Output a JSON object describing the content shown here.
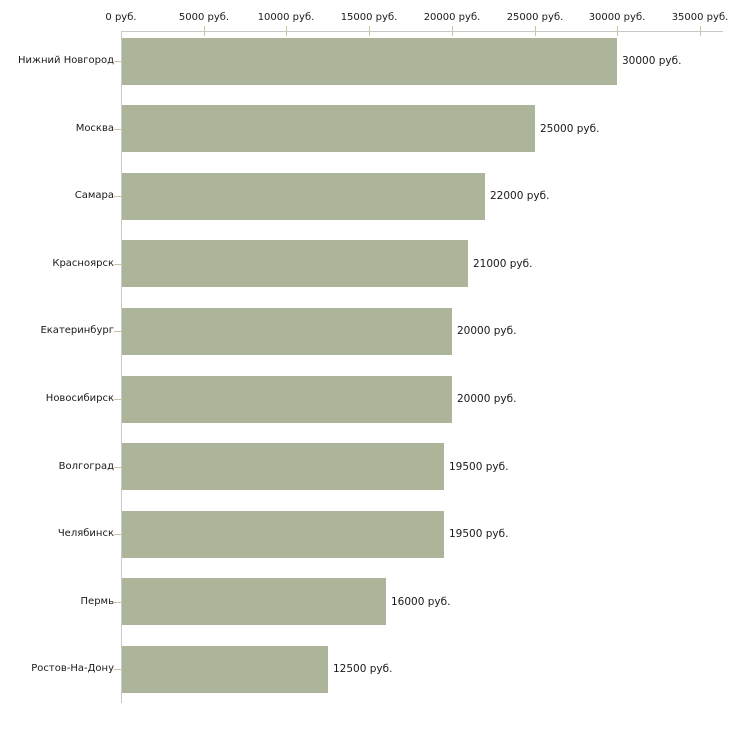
{
  "chart_data": {
    "type": "bar",
    "orientation": "horizontal",
    "title": "",
    "categories": [
      "Нижний Новгород",
      "Москва",
      "Самара",
      "Красноярск",
      "Екатеринбург",
      "Новосибирск",
      "Волгоград",
      "Челябинск",
      "Пермь",
      "Ростов-На-Дону"
    ],
    "values": [
      30000,
      25000,
      22000,
      21000,
      20000,
      20000,
      19500,
      19500,
      16000,
      12500
    ],
    "value_labels": [
      "30000 руб.",
      "25000 руб.",
      "22000 руб.",
      "21000 руб.",
      "20000 руб.",
      "20000 руб.",
      "19500 руб.",
      "19500 руб.",
      "16000 руб.",
      "12500 руб."
    ],
    "x_axis": {
      "position": "top",
      "min": 0,
      "max": 35000,
      "tick_interval": 5000,
      "ticks": [
        0,
        5000,
        10000,
        15000,
        20000,
        25000,
        30000,
        35000
      ],
      "tick_labels": [
        "0 руб.",
        "5000 руб.",
        "10000 руб.",
        "15000 руб.",
        "20000 руб.",
        "25000 руб.",
        "30000 руб.",
        "35000 руб."
      ]
    },
    "grid": false,
    "legend": false,
    "colors": {
      "bar": "#acb499",
      "axis_line": "#c9c9c9",
      "tick_mark": "#c5c8a2",
      "text": "#1a1a1a",
      "background": "#ffffff"
    }
  }
}
